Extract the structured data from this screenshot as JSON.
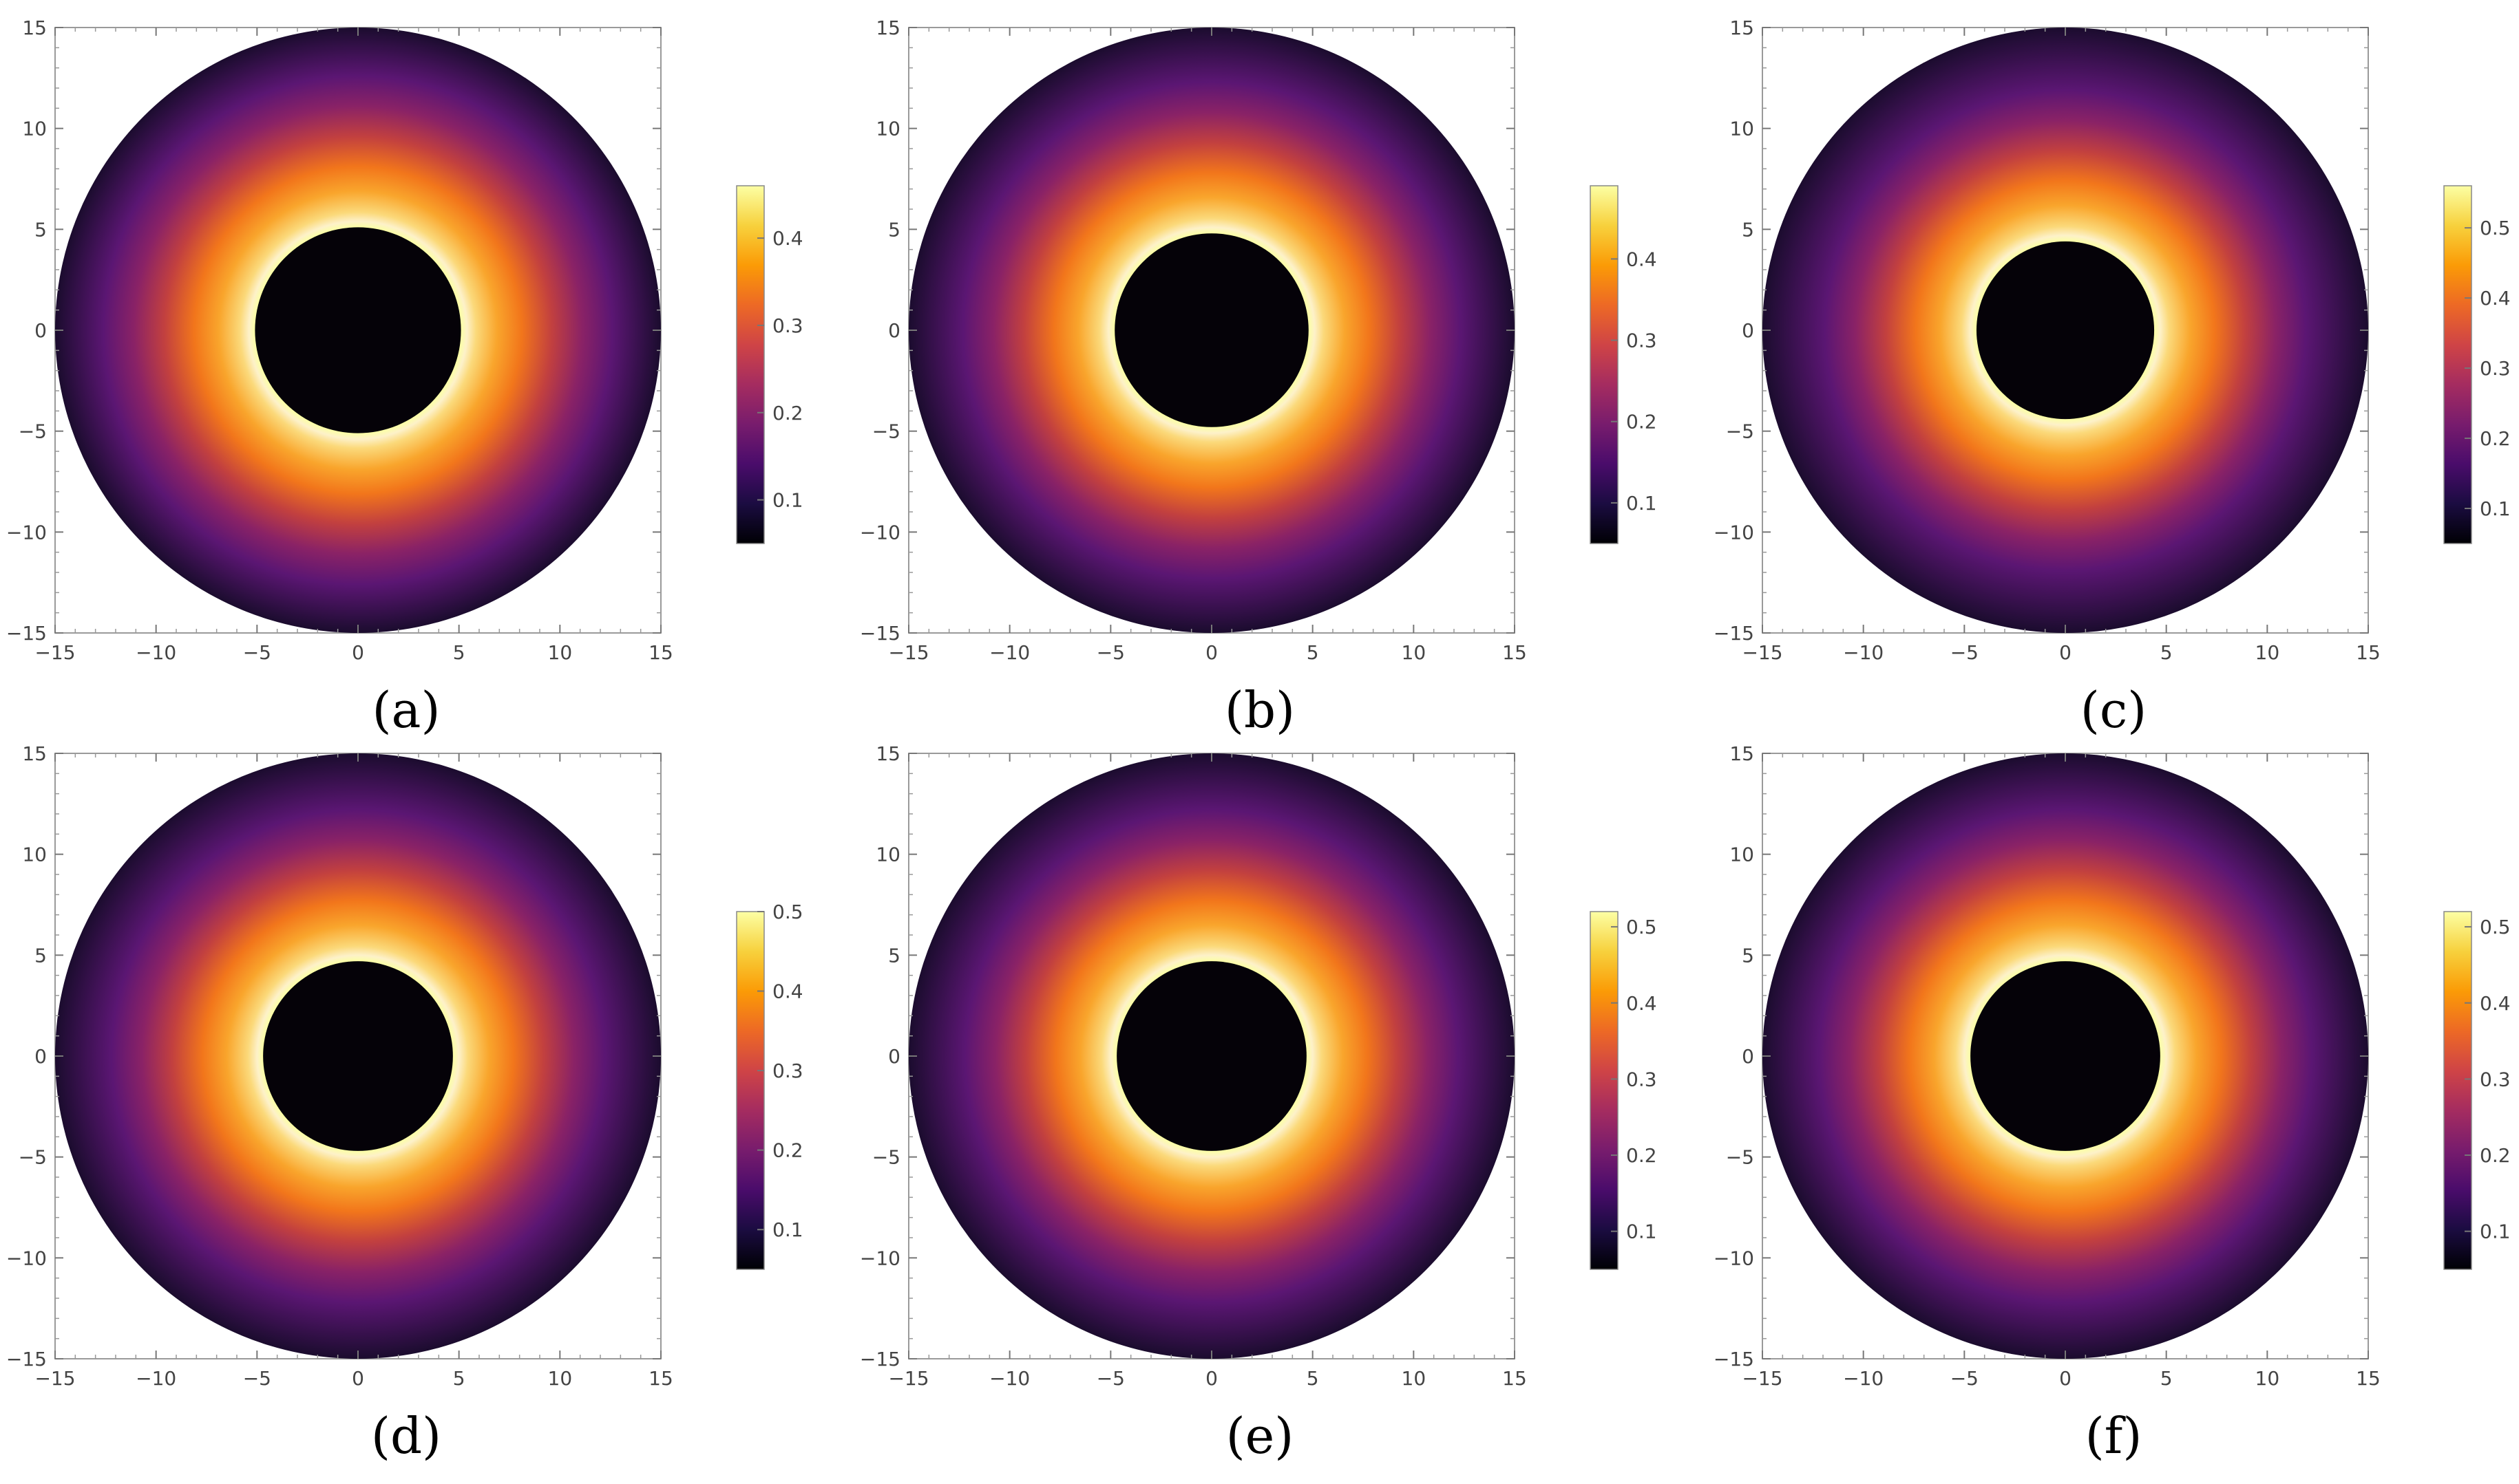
{
  "figure": {
    "colormap": [
      "#000004",
      "#1b0c41",
      "#4a0c6b",
      "#781c6d",
      "#a52c60",
      "#cf4446",
      "#ed6925",
      "#fb9b06",
      "#f7d13d",
      "#fcffa4"
    ]
  },
  "chart_data": [
    {
      "type": "heatmap",
      "label": "(a)",
      "title": "",
      "xlabel": "",
      "ylabel": "",
      "xlim": [
        -15,
        15
      ],
      "ylim": [
        -15,
        15
      ],
      "xticks": [
        -15,
        -10,
        -5,
        0,
        5,
        10,
        15
      ],
      "yticks": [
        -15,
        -10,
        -5,
        0,
        5,
        10,
        15
      ],
      "outer_radius": 15,
      "shadow_radius": 5.1,
      "colorbar": {
        "min": 0.05,
        "max": 0.46,
        "ticks": [
          0.1,
          0.2,
          0.3,
          0.4
        ]
      }
    },
    {
      "type": "heatmap",
      "label": "(b)",
      "title": "",
      "xlabel": "",
      "ylabel": "",
      "xlim": [
        -15,
        15
      ],
      "ylim": [
        -15,
        15
      ],
      "xticks": [
        -15,
        -10,
        -5,
        0,
        5,
        10,
        15
      ],
      "yticks": [
        -15,
        -10,
        -5,
        0,
        5,
        10,
        15
      ],
      "outer_radius": 15,
      "shadow_radius": 4.8,
      "colorbar": {
        "min": 0.05,
        "max": 0.49,
        "ticks": [
          0.1,
          0.2,
          0.3,
          0.4
        ]
      }
    },
    {
      "type": "heatmap",
      "label": "(c)",
      "title": "",
      "xlabel": "",
      "ylabel": "",
      "xlim": [
        -15,
        15
      ],
      "ylim": [
        -15,
        15
      ],
      "xticks": [
        -15,
        -10,
        -5,
        0,
        5,
        10,
        15
      ],
      "yticks": [
        -15,
        -10,
        -5,
        0,
        5,
        10,
        15
      ],
      "outer_radius": 15,
      "shadow_radius": 4.4,
      "colorbar": {
        "min": 0.05,
        "max": 0.56,
        "ticks": [
          0.1,
          0.2,
          0.3,
          0.4,
          0.5
        ]
      }
    },
    {
      "type": "heatmap",
      "label": "(d)",
      "title": "",
      "xlabel": "",
      "ylabel": "",
      "xlim": [
        -15,
        15
      ],
      "ylim": [
        -15,
        15
      ],
      "xticks": [
        -15,
        -10,
        -5,
        0,
        5,
        10,
        15
      ],
      "yticks": [
        -15,
        -10,
        -5,
        0,
        5,
        10,
        15
      ],
      "outer_radius": 15,
      "shadow_radius": 4.7,
      "colorbar": {
        "min": 0.05,
        "max": 0.5,
        "ticks": [
          0.1,
          0.2,
          0.3,
          0.4,
          0.5
        ]
      }
    },
    {
      "type": "heatmap",
      "label": "(e)",
      "title": "",
      "xlabel": "",
      "ylabel": "",
      "xlim": [
        -15,
        15
      ],
      "ylim": [
        -15,
        15
      ],
      "xticks": [
        -15,
        -10,
        -5,
        0,
        5,
        10,
        15
      ],
      "yticks": [
        -15,
        -10,
        -5,
        0,
        5,
        10,
        15
      ],
      "outer_radius": 15,
      "shadow_radius": 4.7,
      "colorbar": {
        "min": 0.05,
        "max": 0.52,
        "ticks": [
          0.1,
          0.2,
          0.3,
          0.4,
          0.5
        ]
      }
    },
    {
      "type": "heatmap",
      "label": "(f)",
      "title": "",
      "xlabel": "",
      "ylabel": "",
      "xlim": [
        -15,
        15
      ],
      "ylim": [
        -15,
        15
      ],
      "xticks": [
        -15,
        -10,
        -5,
        0,
        5,
        10,
        15
      ],
      "yticks": [
        -15,
        -10,
        -5,
        0,
        5,
        10,
        15
      ],
      "outer_radius": 15,
      "shadow_radius": 4.7,
      "colorbar": {
        "min": 0.05,
        "max": 0.52,
        "ticks": [
          0.1,
          0.2,
          0.3,
          0.4,
          0.5
        ]
      }
    }
  ]
}
